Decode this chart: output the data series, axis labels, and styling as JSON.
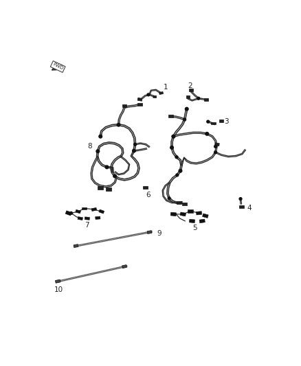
{
  "bg_color": "#ffffff",
  "fig_width": 4.38,
  "fig_height": 5.33,
  "dpi": 100,
  "line_color": "#2a2a2a",
  "line_color2": "#555555",
  "connector_dark": "#111111",
  "connector_gray": "#888888"
}
